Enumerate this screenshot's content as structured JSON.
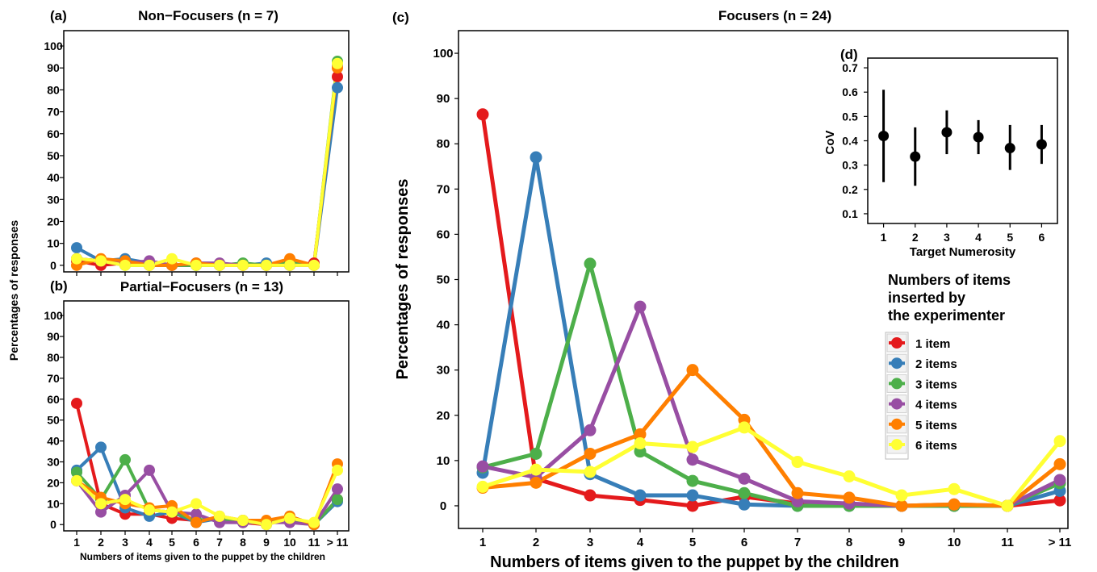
{
  "panels": {
    "a": {
      "label": "(a)",
      "title": "Non−Focusers (n = 7)"
    },
    "b": {
      "label": "(b)",
      "title": "Partial−Focusers (n = 13)"
    },
    "c": {
      "label": "(c)",
      "title": "Focusers (n = 24)"
    },
    "d": {
      "label": "(d)"
    }
  },
  "left_ylabel": "Percentages of responses",
  "left_xlabel": "Numbers of items given to the puppet by the children",
  "legend": {
    "title_lines": [
      "Numbers of items",
      "inserted by",
      "the experimenter"
    ],
    "items": [
      "1 item",
      "2 items",
      "3 items",
      "4 items",
      "5 items",
      "6 items"
    ]
  },
  "colors": {
    "1 item": "#e41a1c",
    "2 items": "#377eb8",
    "3 items": "#4daf4a",
    "4 items": "#984ea3",
    "5 items": "#ff7f00",
    "6 items": "#ffff33"
  },
  "chart_data": [
    {
      "panel": "a",
      "type": "line",
      "title": "Non−Focusers (n = 7)",
      "categories": [
        "1",
        "2",
        "3",
        "4",
        "5",
        "6",
        "7",
        "8",
        "9",
        "10",
        "11",
        "> 11"
      ],
      "yticks": [
        0,
        10,
        20,
        30,
        40,
        50,
        60,
        70,
        80,
        90,
        100
      ],
      "ylim": [
        -3,
        107
      ],
      "series": [
        {
          "name": "1 item",
          "values": [
            2,
            0,
            1,
            0,
            0,
            0,
            0,
            0,
            0,
            0,
            1,
            86
          ]
        },
        {
          "name": "2 items",
          "values": [
            8,
            2,
            3,
            1,
            0,
            0,
            0,
            0,
            1,
            0,
            0,
            81
          ]
        },
        {
          "name": "3 items",
          "values": [
            3,
            2,
            0,
            0,
            0,
            0,
            0,
            1,
            0,
            1,
            0,
            93
          ]
        },
        {
          "name": "4 items",
          "values": [
            3,
            2,
            1,
            2,
            0,
            1,
            1,
            0,
            0,
            0,
            0,
            91
          ]
        },
        {
          "name": "5 items",
          "values": [
            0,
            3,
            2,
            0,
            0,
            1,
            0,
            0,
            0,
            3,
            0,
            90
          ]
        },
        {
          "name": "6 items",
          "values": [
            3,
            2,
            0,
            0,
            3,
            0,
            0,
            0,
            0,
            0,
            0,
            92
          ]
        }
      ]
    },
    {
      "panel": "b",
      "type": "line",
      "title": "Partial−Focusers (n = 13)",
      "categories": [
        "1",
        "2",
        "3",
        "4",
        "5",
        "6",
        "7",
        "8",
        "9",
        "10",
        "11",
        "> 11"
      ],
      "yticks": [
        0,
        10,
        20,
        30,
        40,
        50,
        60,
        70,
        80,
        90,
        100
      ],
      "ylim": [
        -3,
        107
      ],
      "xlabel": "Numbers of items given to the puppet by the children",
      "series": [
        {
          "name": "1 item",
          "values": [
            58,
            10,
            5,
            5,
            3,
            2,
            3,
            1,
            0,
            3,
            0,
            12
          ]
        },
        {
          "name": "2 items",
          "values": [
            26,
            37,
            8,
            4,
            6,
            1,
            3,
            2,
            0,
            4,
            0,
            11
          ]
        },
        {
          "name": "3 items",
          "values": [
            25,
            12,
            31,
            7,
            6,
            2,
            3,
            1,
            1,
            3,
            0,
            12
          ]
        },
        {
          "name": "4 items",
          "values": [
            21,
            6,
            14,
            26,
            6,
            5,
            1,
            1,
            1,
            1,
            0,
            17
          ]
        },
        {
          "name": "5 items",
          "values": [
            21,
            13,
            10,
            8,
            9,
            1,
            4,
            2,
            2,
            4,
            0,
            29
          ]
        },
        {
          "name": "6 items",
          "values": [
            21,
            10,
            12,
            7,
            6,
            10,
            4,
            2,
            0,
            3,
            1,
            26
          ]
        }
      ]
    },
    {
      "panel": "c",
      "type": "line",
      "title": "Focusers (n = 24)",
      "categories": [
        "1",
        "2",
        "3",
        "4",
        "5",
        "6",
        "7",
        "8",
        "9",
        "10",
        "11",
        "> 11"
      ],
      "yticks": [
        0,
        10,
        20,
        30,
        40,
        50,
        60,
        70,
        80,
        90,
        100
      ],
      "ylim": [
        -5,
        105
      ],
      "xlabel": "Numbers of items given to the puppet by the children",
      "ylabel": "Percentages of responses",
      "series": [
        {
          "name": "1 item",
          "values": [
            86.5,
            6,
            2.3,
            1.3,
            0,
            2,
            0.5,
            0.3,
            0,
            0,
            0,
            1.2
          ]
        },
        {
          "name": "2 items",
          "values": [
            7.3,
            77,
            7,
            2.3,
            2.3,
            0.3,
            0,
            0,
            0,
            0,
            0,
            3.3
          ]
        },
        {
          "name": "3 items",
          "values": [
            8.5,
            11.5,
            53.5,
            12,
            5.5,
            2.8,
            0,
            0,
            0,
            0,
            0,
            5
          ]
        },
        {
          "name": "4 items",
          "values": [
            8.7,
            6.3,
            16.7,
            44,
            10.2,
            6,
            1,
            0.5,
            0,
            0.3,
            0,
            5.7
          ]
        },
        {
          "name": "5 items",
          "values": [
            4,
            5.1,
            11.5,
            15.8,
            30,
            19,
            2.8,
            1.8,
            0,
            0.3,
            0,
            9.2
          ]
        },
        {
          "name": "6 items",
          "values": [
            4.2,
            8,
            7.5,
            13.8,
            13,
            17.3,
            9.7,
            6.5,
            2.3,
            3.7,
            0,
            14.3
          ]
        }
      ]
    },
    {
      "panel": "d",
      "type": "scatter",
      "xlabel": "Target Numerosity",
      "ylabel": "CoV",
      "x": [
        1,
        2,
        3,
        4,
        5,
        6
      ],
      "y": [
        0.42,
        0.335,
        0.435,
        0.415,
        0.37,
        0.385
      ],
      "err_low": [
        0.23,
        0.215,
        0.345,
        0.345,
        0.28,
        0.305
      ],
      "err_high": [
        0.61,
        0.455,
        0.525,
        0.485,
        0.465,
        0.465
      ],
      "yticks": [
        0.1,
        0.2,
        0.3,
        0.4,
        0.5,
        0.6,
        0.7
      ],
      "ylim": [
        0.06,
        0.74
      ],
      "xlim": [
        0.5,
        6.5
      ]
    }
  ]
}
